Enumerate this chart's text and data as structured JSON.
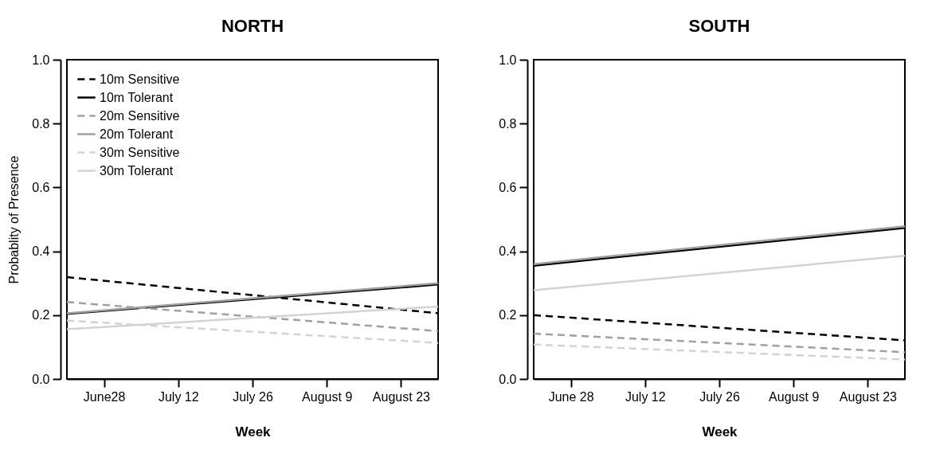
{
  "chart_data": [
    {
      "type": "line",
      "title": "NORTH",
      "xlabel": "Week",
      "ylabel": "Probablity of Presence",
      "x": [
        "--06-21",
        "--08-30"
      ],
      "xlim": [
        "--06-21",
        "--08-30"
      ],
      "xticks": [
        {
          "value": "--06-28",
          "label": "June28"
        },
        {
          "value": "--07-12",
          "label": "July 12"
        },
        {
          "value": "--07-26",
          "label": "July 26"
        },
        {
          "value": "--08-09",
          "label": "August 9"
        },
        {
          "value": "--08-23",
          "label": "August 23"
        }
      ],
      "ylim": [
        0,
        1
      ],
      "yticks": [
        {
          "value": 0,
          "label": "0.0"
        },
        {
          "value": 0.2,
          "label": "0.2"
        },
        {
          "value": 0.4,
          "label": "0.4"
        },
        {
          "value": 0.6,
          "label": "0.6"
        },
        {
          "value": 0.8,
          "label": "0.8"
        },
        {
          "value": 1,
          "label": "1.0"
        }
      ],
      "grid": false,
      "legend": "top left",
      "series": [
        {
          "name": "10m Sensitive",
          "color": "#000000",
          "line_style": "dashed",
          "values": [
            0.319,
            0.206
          ]
        },
        {
          "name": "10m Tolerant",
          "color": "#000000",
          "line_style": "solid",
          "values": [
            0.204,
            0.296
          ]
        },
        {
          "name": "20m Sensitive",
          "color": "#a0a0a0",
          "line_style": "dashed",
          "values": [
            0.241,
            0.15
          ]
        },
        {
          "name": "20m Tolerant",
          "color": "#a0a0a0",
          "line_style": "solid",
          "values": [
            0.206,
            0.3
          ]
        },
        {
          "name": "30m Sensitive",
          "color": "#d3d3d3",
          "line_style": "dashed",
          "values": [
            0.183,
            0.113
          ]
        },
        {
          "name": "30m Tolerant",
          "color": "#d3d3d3",
          "line_style": "solid",
          "values": [
            0.156,
            0.227
          ]
        }
      ]
    },
    {
      "type": "line",
      "title": "SOUTH",
      "xlabel": "Week",
      "x": [
        "--06-21",
        "--08-30"
      ],
      "xlim": [
        "--06-21",
        "--08-30"
      ],
      "xticks": [
        {
          "value": "--06-28",
          "label": "June 28"
        },
        {
          "value": "--07-12",
          "label": "July 12"
        },
        {
          "value": "--07-26",
          "label": "July 26"
        },
        {
          "value": "--08-09",
          "label": "August 9"
        },
        {
          "value": "--08-23",
          "label": "August 23"
        }
      ],
      "ylim": [
        0,
        1
      ],
      "yticks": [
        {
          "value": 0,
          "label": "0.0"
        },
        {
          "value": 0.2,
          "label": "0.2"
        },
        {
          "value": 0.4,
          "label": "0.4"
        },
        {
          "value": 0.6,
          "label": "0.6"
        },
        {
          "value": 0.8,
          "label": "0.8"
        },
        {
          "value": 1,
          "label": "1.0"
        }
      ],
      "grid": false,
      "series": [
        {
          "color": "#000000",
          "line_style": "dashed",
          "values": [
            0.2,
            0.121
          ]
        },
        {
          "color": "#000000",
          "line_style": "solid",
          "values": [
            0.355,
            0.473
          ]
        },
        {
          "color": "#a0a0a0",
          "line_style": "dashed",
          "values": [
            0.142,
            0.084
          ]
        },
        {
          "color": "#a0a0a0",
          "line_style": "solid",
          "values": [
            0.36,
            0.478
          ]
        },
        {
          "color": "#d3d3d3",
          "line_style": "dashed",
          "values": [
            0.108,
            0.061
          ]
        },
        {
          "color": "#d3d3d3",
          "line_style": "solid",
          "values": [
            0.278,
            0.386
          ]
        }
      ]
    }
  ]
}
